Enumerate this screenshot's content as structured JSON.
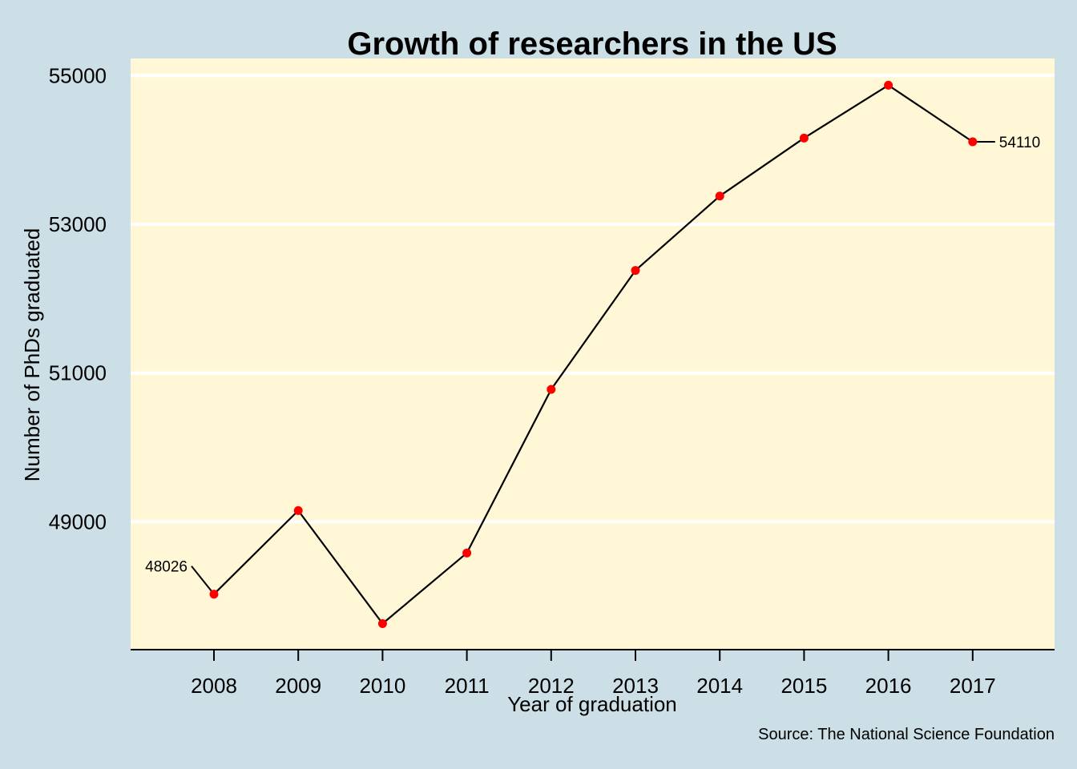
{
  "colors": {
    "page_background": "#CCDFE6",
    "panel_background": "#FFF7D6",
    "gridline": "#FFFFFF",
    "line": "#000000",
    "point": "#FF0000"
  },
  "chart_data": {
    "type": "line",
    "title": "Growth of researchers in the US",
    "xlabel": "Year of graduation",
    "ylabel": "Number of PhDs graduated",
    "caption": "Source: The National Science Foundation",
    "categories": [
      "2008",
      "2009",
      "2010",
      "2011",
      "2012",
      "2013",
      "2014",
      "2015",
      "2016",
      "2017"
    ],
    "series": [
      {
        "values": [
          48026,
          49150,
          47630,
          48580,
          50780,
          52380,
          53380,
          54160,
          54870,
          54110
        ]
      }
    ],
    "yticks": [
      49000,
      51000,
      53000,
      55000
    ],
    "ylim": [
      47280,
      55230
    ],
    "grid": "horizontal-major",
    "legend": "none",
    "data_labels": [
      {
        "category": "2008",
        "text": "48026",
        "side": "left"
      },
      {
        "category": "2017",
        "text": "54110",
        "side": "right"
      }
    ]
  }
}
